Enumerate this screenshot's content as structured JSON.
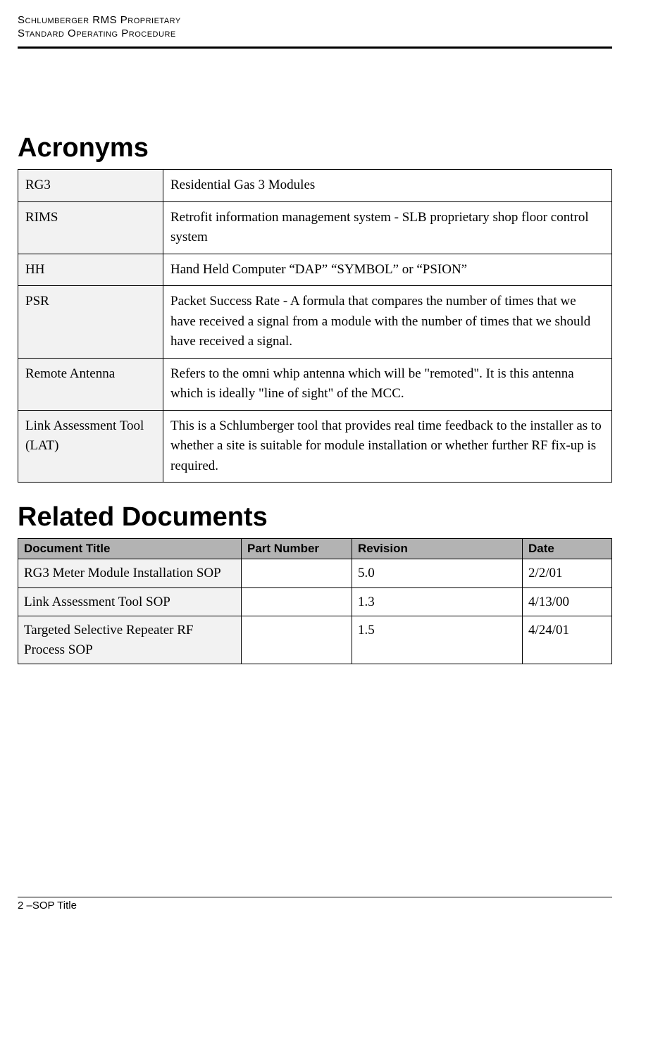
{
  "header": {
    "line1": "Schlumberger RMS Proprietary",
    "line2": "Standard Operating Procedure"
  },
  "sections": {
    "acronyms_title": "Acronyms",
    "related_title": "Related Documents"
  },
  "acronyms": [
    {
      "term": "RG3",
      "def": "Residential Gas 3 Modules"
    },
    {
      "term": "RIMS",
      "def": "Retrofit information management system - SLB proprietary shop floor control system"
    },
    {
      "term": "HH",
      "def": "Hand Held Computer “DAP” “SYMBOL” or “PSION”"
    },
    {
      "term": "PSR",
      "def": "Packet Success Rate - A formula that compares the number of times that we have received a signal from a module with the number of times that we should have received a signal."
    },
    {
      "term": "Remote Antenna",
      "def": "Refers to the omni whip antenna which will be \"remoted\". It is this antenna which is ideally \"line of sight\" of the MCC."
    },
    {
      "term": "Link Assessment Tool (LAT)",
      "def": "This is a Schlumberger tool that provides real time feedback to the installer as to whether a site is suitable for module installation or whether further RF fix-up is required."
    }
  ],
  "docs_headers": {
    "title": "Document Title",
    "part": "Part Number",
    "rev": "Revision",
    "date": "Date"
  },
  "docs": [
    {
      "title": "RG3 Meter Module Installation SOP",
      "part": "",
      "rev": "5.0",
      "date": "2/2/01"
    },
    {
      "title": "Link Assessment Tool SOP",
      "part": "",
      "rev": "1.3",
      "date": "4/13/00"
    },
    {
      "title": "Targeted Selective Repeater RF Process SOP",
      "part": "",
      "rev": "1.5",
      "date": "4/24/01"
    }
  ],
  "footer": "2 –SOP Title"
}
